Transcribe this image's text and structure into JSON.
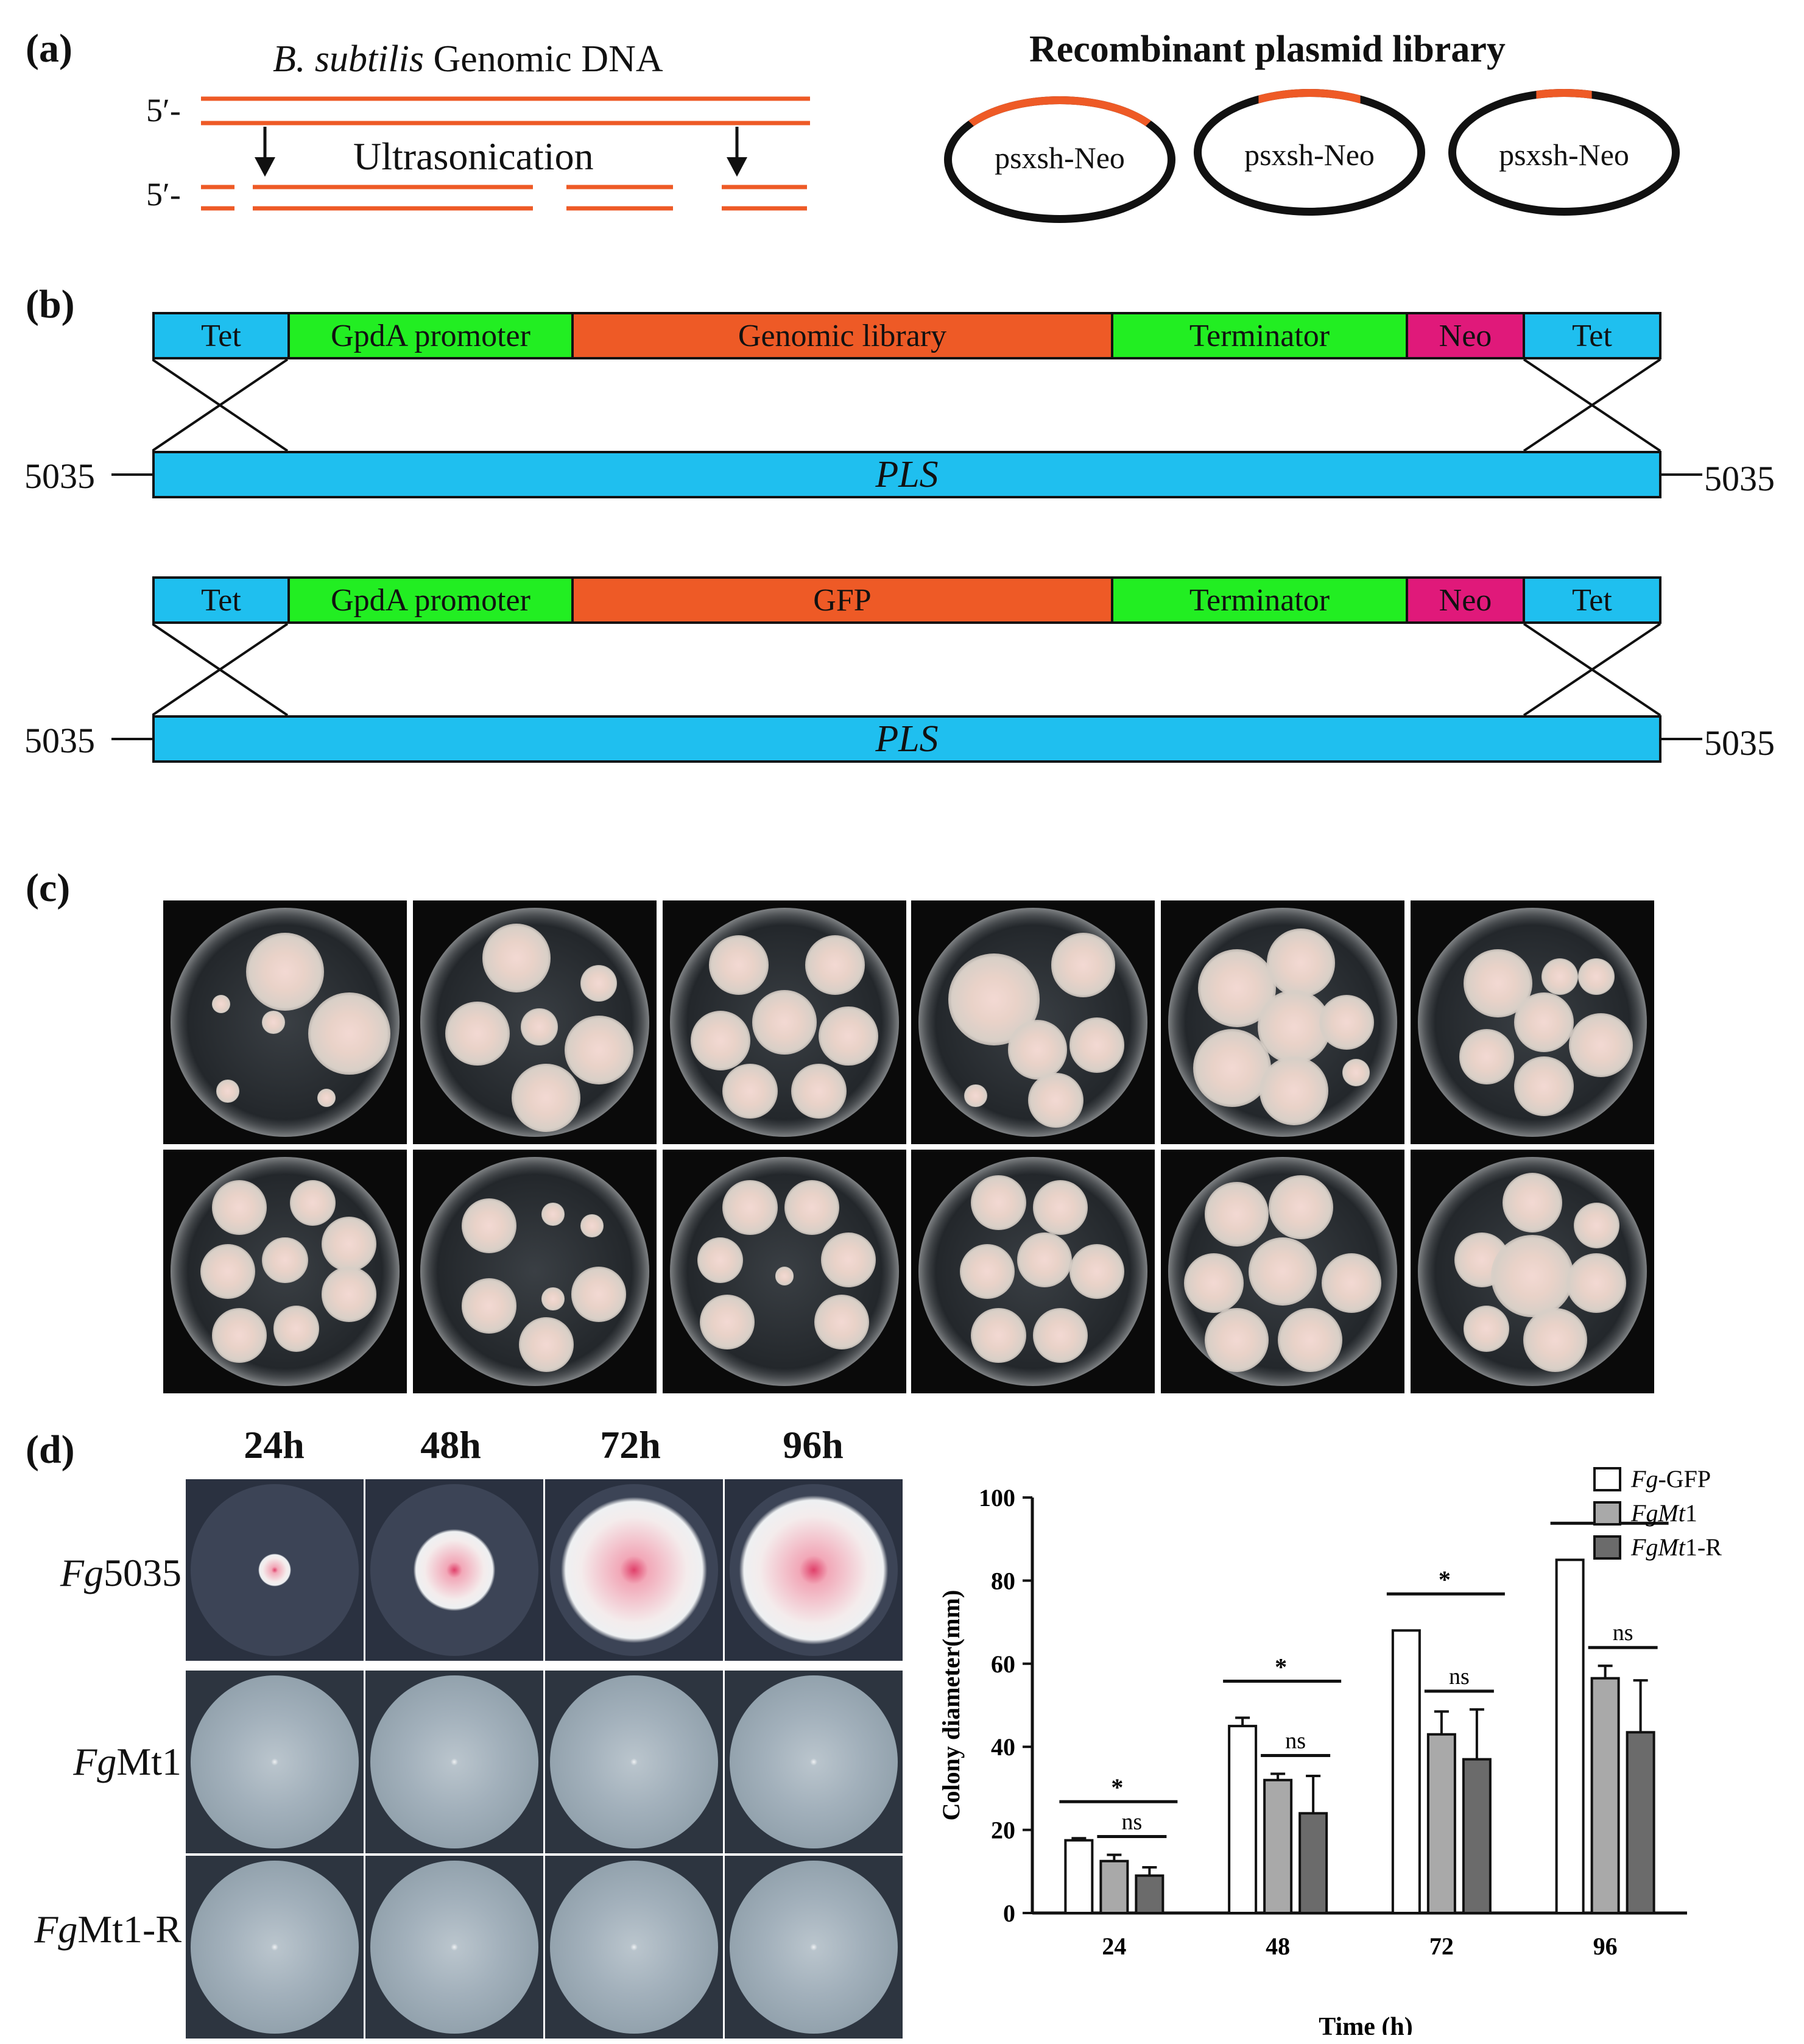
{
  "panel_a": {
    "label": "(a)",
    "genomic_title_italic": "B. subtilis",
    "genomic_title_rest": " Genomic DNA",
    "strand_label_top": "5′-",
    "strand_label_bottom": "5′-",
    "process_label": "Ultrasonication",
    "library_title": "Recombinant plasmid library",
    "plasmids": [
      "psxsh-Neo",
      "psxsh-Neo",
      "psxsh-Neo"
    ]
  },
  "panel_b": {
    "label": "(b)",
    "constructs": [
      {
        "segments": [
          {
            "label": "Tet",
            "color": "#1fbfef"
          },
          {
            "label": "GpdA promoter",
            "color": "#22ee22"
          },
          {
            "label": "Genomic library",
            "color": "#ee5a26"
          },
          {
            "label": "Terminator",
            "color": "#22ee22"
          },
          {
            "label": "Neo",
            "color": "#e0197a"
          },
          {
            "label": "Tet",
            "color": "#1fbfef"
          }
        ],
        "target": "PLS",
        "left_label": "5035",
        "right_label": "5035"
      },
      {
        "segments": [
          {
            "label": "Tet",
            "color": "#1fbfef"
          },
          {
            "label": "GpdA promoter",
            "color": "#22ee22"
          },
          {
            "label": "GFP",
            "color": "#ee5a26"
          },
          {
            "label": "Terminator",
            "color": "#22ee22"
          },
          {
            "label": "Neo",
            "color": "#e0197a"
          },
          {
            "label": "Tet",
            "color": "#1fbfef"
          }
        ],
        "target": "PLS",
        "left_label": "5035",
        "right_label": "5035"
      }
    ]
  },
  "panel_c": {
    "label": "(c)"
  },
  "panel_d": {
    "label": "(d)",
    "time_labels": [
      "24h",
      "48h",
      "72h",
      "96h"
    ],
    "rows": [
      {
        "italic": "Fg",
        "rest": "5035"
      },
      {
        "italic": "Fg",
        "rest": "Mt1"
      },
      {
        "italic": "Fg",
        "rest": "Mt1-R"
      }
    ]
  },
  "chart_data": {
    "type": "bar",
    "categories": [
      "24",
      "48",
      "72",
      "96"
    ],
    "series": [
      {
        "name": "Fg-GFP",
        "legend_italic": "Fg",
        "legend_rest": "-GFP",
        "color": "#ffffff",
        "values": [
          17.5,
          45,
          68,
          85
        ],
        "errors": [
          0.5,
          2,
          0,
          0
        ]
      },
      {
        "name": "FgMt1",
        "legend_italic": "FgMt",
        "legend_rest": "1",
        "color": "#a9a9a9",
        "values": [
          12.5,
          32,
          43,
          56.5
        ],
        "errors": [
          1.5,
          1.5,
          5.5,
          3
        ]
      },
      {
        "name": "FgMt1-R",
        "legend_italic": "FgMt",
        "legend_rest": "1-R",
        "color": "#6b6b6b",
        "values": [
          9,
          24,
          37,
          43.5
        ],
        "errors": [
          2,
          9,
          12,
          12.5
        ]
      }
    ],
    "significance": [
      {
        "category": "24",
        "all": "*",
        "pair": "ns"
      },
      {
        "category": "48",
        "all": "*",
        "pair": "ns"
      },
      {
        "category": "72",
        "all": "*",
        "pair": "ns"
      },
      {
        "category": "96",
        "all": "*",
        "pair": "ns"
      }
    ],
    "xlabel": "Time (h)",
    "ylabel": "Colony diameter(mm)",
    "ylim": [
      0,
      100
    ],
    "yticks": [
      0,
      20,
      40,
      60,
      80,
      100
    ],
    "legend_position": "top-right"
  }
}
